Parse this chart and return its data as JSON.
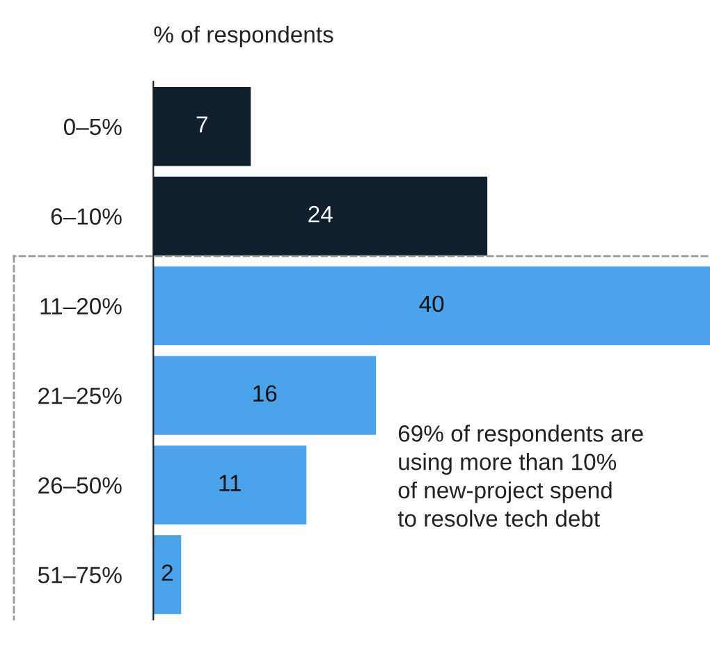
{
  "chart_data": {
    "type": "bar",
    "orientation": "horizontal",
    "xlabel": "% of respondents",
    "categories": [
      "0–5%",
      "6–10%",
      "11–20%",
      "21–25%",
      "26–50%",
      "51–75%"
    ],
    "values": [
      7,
      24,
      40,
      16,
      11,
      2
    ],
    "colors": [
      "#0f1f2e",
      "#0f1f2e",
      "#4ba3ec",
      "#4ba3ec",
      "#4ba3ec",
      "#4ba3ec"
    ],
    "xlim": [
      0,
      40
    ],
    "data_labels": true,
    "grid": false,
    "annotations": [
      "69% of respondents are\nusing more than 10%\nof new-project spend\nto resolve tech debt"
    ]
  }
}
